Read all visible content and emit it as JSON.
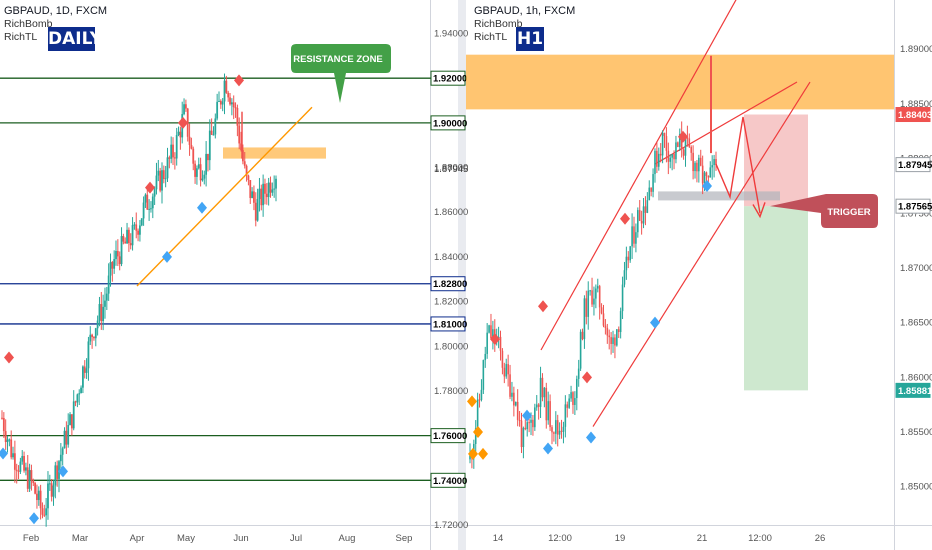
{
  "left": {
    "header": {
      "symbol": "GBPAUD, 1D, FXCM",
      "ind1": "RichBomb",
      "ind2": "RichTL",
      "badge": "DAILY"
    },
    "callout": "RESISTANCE ZONE",
    "yticks": [
      "1.94000",
      "1.88000",
      "1.86000",
      "1.84000",
      "1.82000",
      "1.80000",
      "1.78000",
      "1.72000"
    ],
    "levels": [
      {
        "value": "1.92000",
        "color": "#1b5e20"
      },
      {
        "value": "1.90000",
        "color": "#1b5e20"
      },
      {
        "value": "1.82800",
        "color": "#0d2c8c"
      },
      {
        "value": "1.81000",
        "color": "#0d2c8c"
      },
      {
        "value": "1.76000",
        "color": "#1b5e20"
      },
      {
        "value": "1.74000",
        "color": "#1b5e20"
      }
    ],
    "current_price": "1.87945",
    "xticks": [
      "Feb",
      "Mar",
      "Apr",
      "May",
      "Jun",
      "Jul",
      "Aug",
      "Sep"
    ]
  },
  "right": {
    "header": {
      "symbol": "GBPAUD, 1h, FXCM",
      "ind1": "RichBomb",
      "ind2": "RichTL",
      "badge": "H1"
    },
    "callout": "TRIGGER",
    "yticks": [
      "1.89000",
      "1.88500",
      "1.88000",
      "1.87500",
      "1.87000",
      "1.86500",
      "1.86000",
      "1.85500",
      "1.85000"
    ],
    "labels": [
      {
        "value": "1.88403",
        "bg": "#ef5350"
      },
      {
        "value": "1.87945",
        "bg": "#ffffff"
      },
      {
        "value": "1.87565",
        "bg": "#ffffff"
      },
      {
        "value": "1.85881",
        "bg": "#26a69a"
      }
    ],
    "xticks": [
      "14",
      "12:00",
      "19",
      "21",
      "12:00",
      "26"
    ]
  },
  "chart_data": [
    {
      "type": "candlestick",
      "title": "GBPAUD, 1D, FXCM",
      "ylim": [
        1.72,
        1.955
      ],
      "x": [
        "Feb",
        "Mar",
        "Apr",
        "May",
        "Jun",
        "Jul",
        "Aug",
        "Sep"
      ],
      "horizontal_levels": [
        1.92,
        1.9,
        1.828,
        1.81,
        1.76,
        1.74
      ],
      "last_price": 1.87945,
      "resistance_zone": [
        1.885,
        1.889
      ],
      "close_path": [
        1.768,
        1.752,
        1.745,
        1.738,
        1.725,
        1.74,
        1.755,
        1.77,
        1.79,
        1.808,
        1.818,
        1.838,
        1.845,
        1.85,
        1.862,
        1.87,
        1.878,
        1.888,
        1.905,
        1.878,
        1.882,
        1.9,
        1.92,
        1.905,
        1.875,
        1.862,
        1.87,
        1.878
      ]
    },
    {
      "type": "candlestick",
      "title": "GBPAUD, 1h, FXCM",
      "ylim": [
        1.8465,
        1.8945
      ],
      "x": [
        "14",
        "12:00",
        "19",
        "21",
        "12:00",
        "26"
      ],
      "resistance_zone": [
        1.8845,
        1.8895
      ],
      "stop_level": 1.88403,
      "last_price": 1.87945,
      "trigger": 1.87565,
      "target": 1.85881,
      "close_path": [
        1.8525,
        1.8575,
        1.864,
        1.8635,
        1.8605,
        1.8585,
        1.854,
        1.856,
        1.859,
        1.8565,
        1.855,
        1.857,
        1.859,
        1.866,
        1.868,
        1.8665,
        1.8625,
        1.8655,
        1.871,
        1.8745,
        1.876,
        1.8795,
        1.882,
        1.88,
        1.8815,
        1.8805,
        1.879,
        1.8775,
        1.8795
      ]
    }
  ]
}
